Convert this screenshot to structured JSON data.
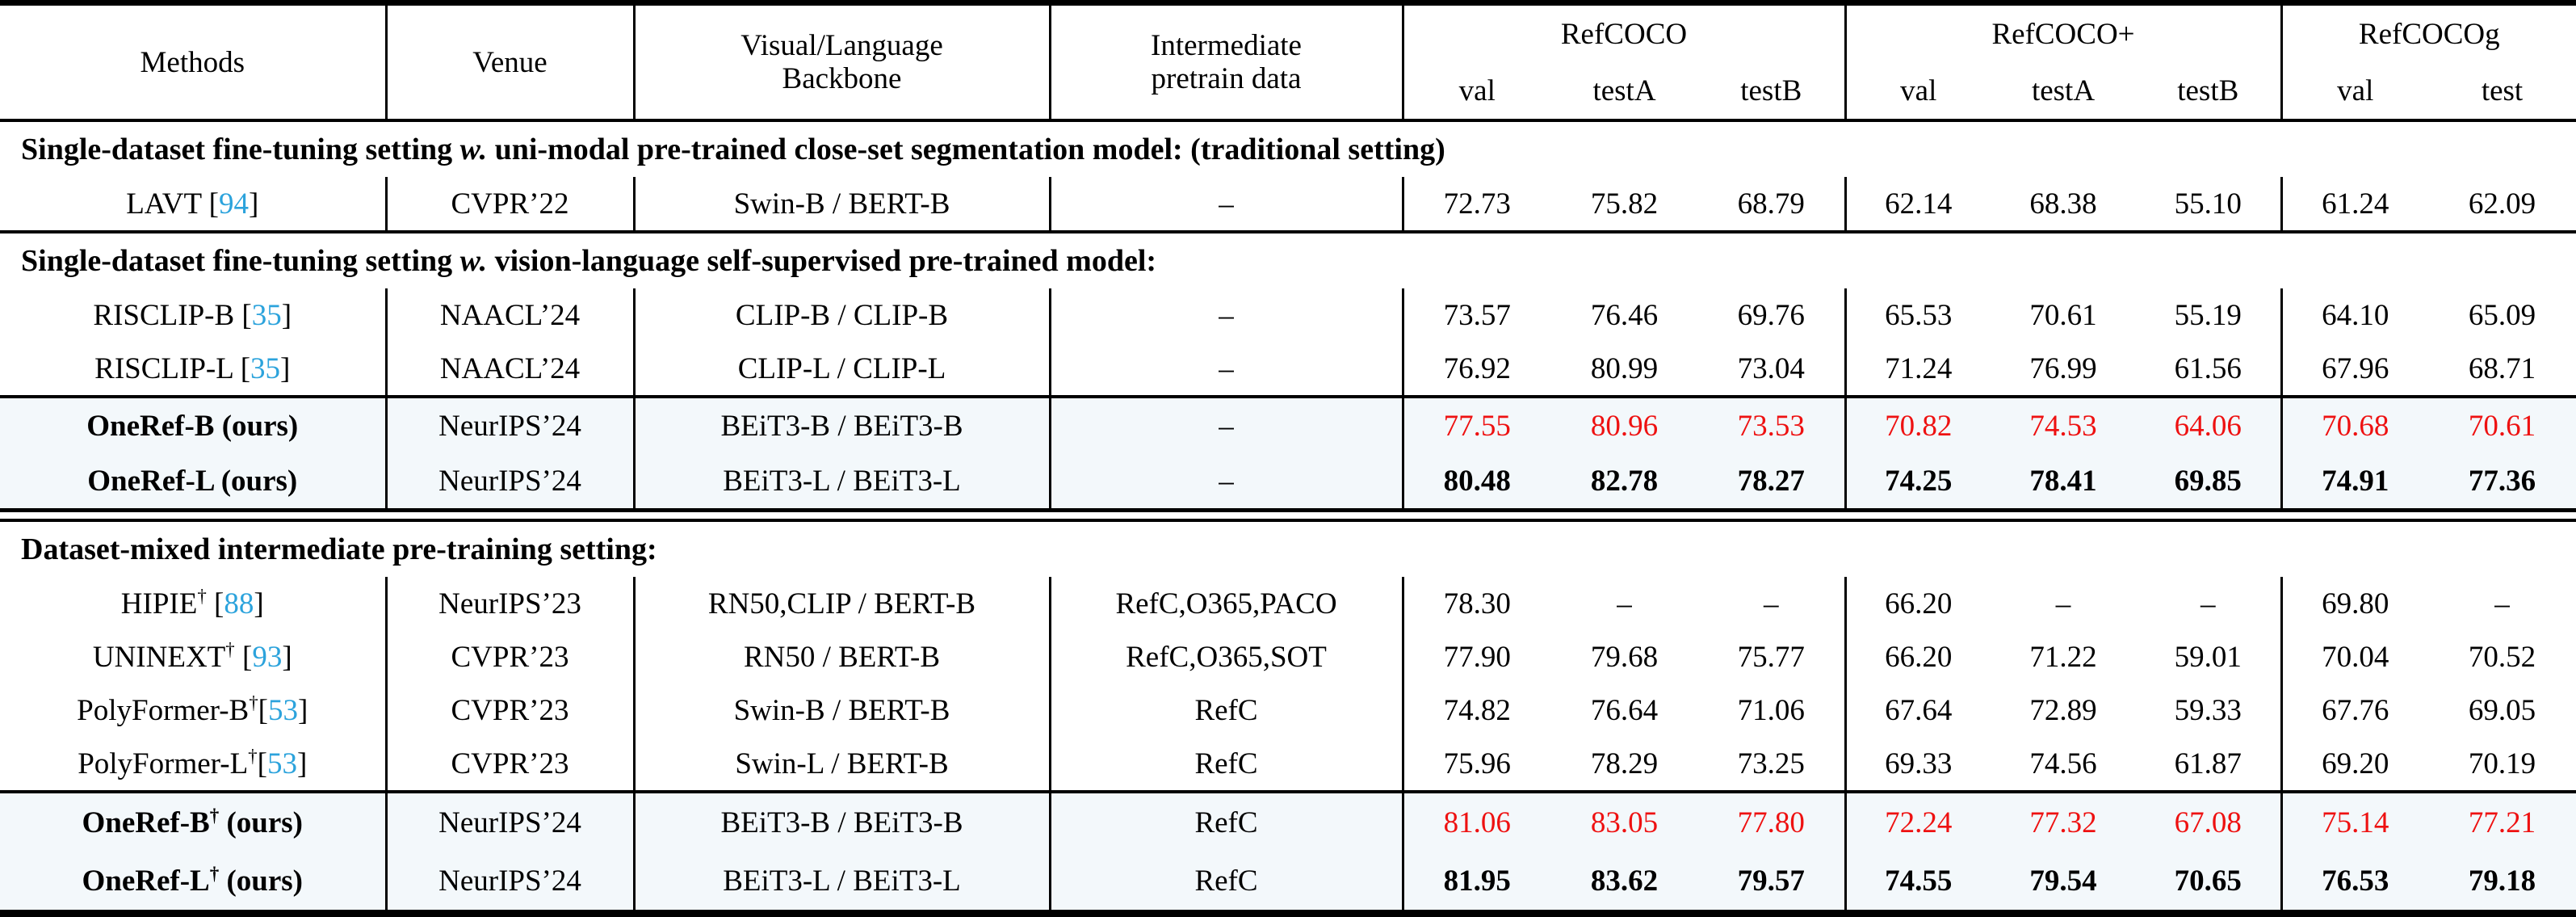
{
  "colors": {
    "citation": "#2ca3dc",
    "best_red": "#ee1111",
    "highlight_row_bg": "#f3f8fb",
    "rule": "#000000"
  },
  "table": {
    "header": {
      "methods": "Methods",
      "venue": "Venue",
      "backbone": "Visual/Language\nBackbone",
      "pretrain": "Intermediate\npretrain data"
    },
    "groups": [
      {
        "label": "RefCOCO",
        "subs": [
          "val",
          "testA",
          "testB"
        ]
      },
      {
        "label": "RefCOCO+",
        "subs": [
          "val",
          "testA",
          "testB"
        ]
      },
      {
        "label": "RefCOCOg",
        "subs": [
          "val",
          "test"
        ]
      }
    ],
    "sections": [
      {
        "title": {
          "pre": "Single-dataset fine-tuning setting ",
          "italic": "w.",
          "post": " uni-modal pre-trained close-set segmentation model: (traditional setting)"
        },
        "rule_before": "none",
        "rows": [
          {
            "method": [
              {
                "t": "LAVT "
              },
              {
                "t": "["
              },
              {
                "t": "94",
                "c": true
              },
              {
                "t": "]"
              }
            ],
            "venue": "CVPR’22",
            "backbone": "Swin-B / BERT-B",
            "pretrain": "–",
            "values": [
              "72.73",
              "75.82",
              "68.79",
              "62.14",
              "68.38",
              "55.10",
              "61.24",
              "62.09"
            ],
            "value_style": "normal",
            "highlight": false,
            "method_bold": false
          }
        ]
      },
      {
        "title": {
          "pre": "Single-dataset fine-tuning setting ",
          "italic": "w.",
          "post": " vision-language self-supervised pre-trained model:"
        },
        "rule_before": "single",
        "rows": [
          {
            "method": [
              {
                "t": "RISCLIP-B "
              },
              {
                "t": "["
              },
              {
                "t": "35",
                "c": true
              },
              {
                "t": "]"
              }
            ],
            "venue": "NAACL’24",
            "backbone": "CLIP-B / CLIP-B",
            "pretrain": "–",
            "values": [
              "73.57",
              "76.46",
              "69.76",
              "65.53",
              "70.61",
              "55.19",
              "64.10",
              "65.09"
            ],
            "value_style": "normal",
            "highlight": false,
            "method_bold": false
          },
          {
            "method": [
              {
                "t": "RISCLIP-L "
              },
              {
                "t": "["
              },
              {
                "t": "35",
                "c": true
              },
              {
                "t": "]"
              }
            ],
            "venue": "NAACL’24",
            "backbone": "CLIP-L / CLIP-L",
            "pretrain": "–",
            "values": [
              "76.92",
              "80.99",
              "73.04",
              "71.24",
              "76.99",
              "61.56",
              "67.96",
              "68.71"
            ],
            "value_style": "normal",
            "highlight": false,
            "method_bold": false
          }
        ]
      },
      {
        "title": null,
        "rule_before": "single",
        "rule_after": "double",
        "row_height": "tall",
        "rows": [
          {
            "method": [
              {
                "t": "OneRef-B (ours)"
              }
            ],
            "venue": "NeurIPS’24",
            "backbone": "BEiT3-B / BEiT3-B",
            "pretrain": "–",
            "values": [
              "77.55",
              "80.96",
              "73.53",
              "70.82",
              "74.53",
              "64.06",
              "70.68",
              "70.61"
            ],
            "value_style": "red",
            "highlight": true,
            "method_bold": true
          },
          {
            "method": [
              {
                "t": "OneRef-L (ours)"
              }
            ],
            "venue": "NeurIPS’24",
            "backbone": "BEiT3-L / BEiT3-L",
            "pretrain": "–",
            "values": [
              "80.48",
              "82.78",
              "78.27",
              "74.25",
              "78.41",
              "69.85",
              "74.91",
              "77.36"
            ],
            "value_style": "bold",
            "highlight": true,
            "method_bold": true
          }
        ]
      },
      {
        "title": {
          "pre": "Dataset-mixed intermediate pre-training setting:",
          "italic": "",
          "post": ""
        },
        "rule_before": "none",
        "rows": [
          {
            "method": [
              {
                "t": "HIPIE"
              },
              {
                "t": "†",
                "s": true
              },
              {
                "t": " ["
              },
              {
                "t": "88",
                "c": true
              },
              {
                "t": "]"
              }
            ],
            "venue": "NeurIPS’23",
            "backbone": "RN50,CLIP / BERT-B",
            "pretrain": "RefC,O365,PACO",
            "values": [
              "78.30",
              "–",
              "–",
              "66.20",
              "–",
              "–",
              "69.80",
              "–"
            ],
            "value_style": "normal",
            "highlight": false,
            "method_bold": false
          },
          {
            "method": [
              {
                "t": "UNINEXT"
              },
              {
                "t": "†",
                "s": true
              },
              {
                "t": " ["
              },
              {
                "t": "93",
                "c": true
              },
              {
                "t": "]"
              }
            ],
            "venue": "CVPR’23",
            "backbone": "RN50 / BERT-B",
            "pretrain": "RefC,O365,SOT",
            "values": [
              "77.90",
              "79.68",
              "75.77",
              "66.20",
              "71.22",
              "59.01",
              "70.04",
              "70.52"
            ],
            "value_style": "normal",
            "highlight": false,
            "method_bold": false
          },
          {
            "method": [
              {
                "t": "PolyFormer-B"
              },
              {
                "t": "†",
                "s": true
              },
              {
                "t": "["
              },
              {
                "t": "53",
                "c": true
              },
              {
                "t": "]"
              }
            ],
            "venue": "CVPR’23",
            "backbone": "Swin-B / BERT-B",
            "pretrain": "RefC",
            "values": [
              "74.82",
              "76.64",
              "71.06",
              "67.64",
              "72.89",
              "59.33",
              "67.76",
              "69.05"
            ],
            "value_style": "normal",
            "highlight": false,
            "method_bold": false
          },
          {
            "method": [
              {
                "t": "PolyFormer-L"
              },
              {
                "t": "†",
                "s": true
              },
              {
                "t": "["
              },
              {
                "t": "53",
                "c": true
              },
              {
                "t": "]"
              }
            ],
            "venue": "CVPR’23",
            "backbone": "Swin-L / BERT-B",
            "pretrain": "RefC",
            "values": [
              "75.96",
              "78.29",
              "73.25",
              "69.33",
              "74.56",
              "61.87",
              "69.20",
              "70.19"
            ],
            "value_style": "normal",
            "highlight": false,
            "method_bold": false
          }
        ]
      },
      {
        "title": null,
        "rule_before": "single",
        "row_height": "taller",
        "rows": [
          {
            "method": [
              {
                "t": "OneRef-B"
              },
              {
                "t": "†",
                "s": true
              },
              {
                "t": " (ours)"
              }
            ],
            "venue": "NeurIPS’24",
            "backbone": "BEiT3-B / BEiT3-B",
            "pretrain": "RefC",
            "values": [
              "81.06",
              "83.05",
              "77.80",
              "72.24",
              "77.32",
              "67.08",
              "75.14",
              "77.21"
            ],
            "value_style": "red",
            "highlight": true,
            "method_bold": true
          },
          {
            "method": [
              {
                "t": "OneRef-L"
              },
              {
                "t": "†",
                "s": true
              },
              {
                "t": " (ours)"
              }
            ],
            "venue": "NeurIPS’24",
            "backbone": "BEiT3-L / BEiT3-L",
            "pretrain": "RefC",
            "values": [
              "81.95",
              "83.62",
              "79.57",
              "74.55",
              "79.54",
              "70.65",
              "76.53",
              "79.18"
            ],
            "value_style": "bold",
            "highlight": true,
            "method_bold": true
          }
        ]
      }
    ]
  }
}
